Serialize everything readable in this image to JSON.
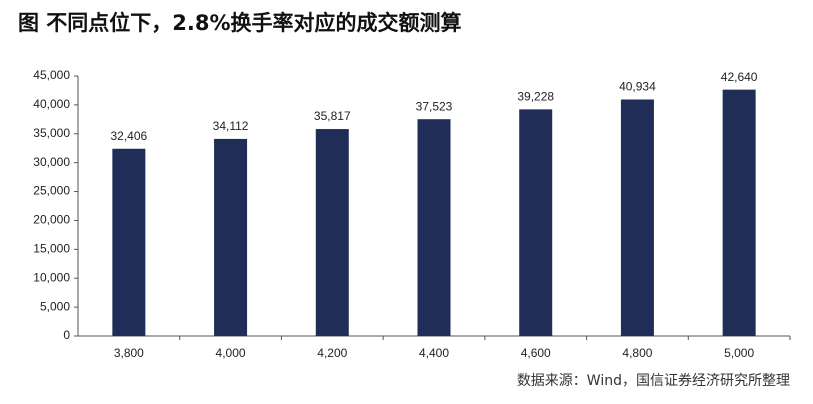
{
  "chart_data": {
    "type": "bar",
    "title": "图 不同点位下，2.8%换手率对应的成交额测算",
    "source": "数据来源：Wind，国信证券经济研究所整理",
    "categories": [
      "3,800",
      "4,000",
      "4,200",
      "4,400",
      "4,600",
      "4,800",
      "5,000"
    ],
    "values": [
      32406,
      34112,
      35817,
      37523,
      39228,
      40934,
      42640
    ],
    "value_labels": [
      "32,406",
      "34,112",
      "35,817",
      "37,523",
      "39,228",
      "40,934",
      "42,640"
    ],
    "color": "#1f2d57",
    "ylim": [
      0,
      45000
    ],
    "yticks": [
      0,
      {
        "value": 5000,
        "label": "5,000"
      },
      {
        "value": 10000,
        "label": "10,000"
      },
      {
        "value": 15000,
        "label": "15,000"
      },
      {
        "value": 20000,
        "label": "20,000"
      },
      {
        "value": 25000,
        "label": "25,000"
      },
      {
        "value": 30000,
        "label": "30,000"
      },
      {
        "value": 35000,
        "label": "35,000"
      },
      {
        "value": 40000,
        "label": "40,000"
      },
      {
        "value": 45000,
        "label": "45,000"
      }
    ],
    "grid": false
  }
}
